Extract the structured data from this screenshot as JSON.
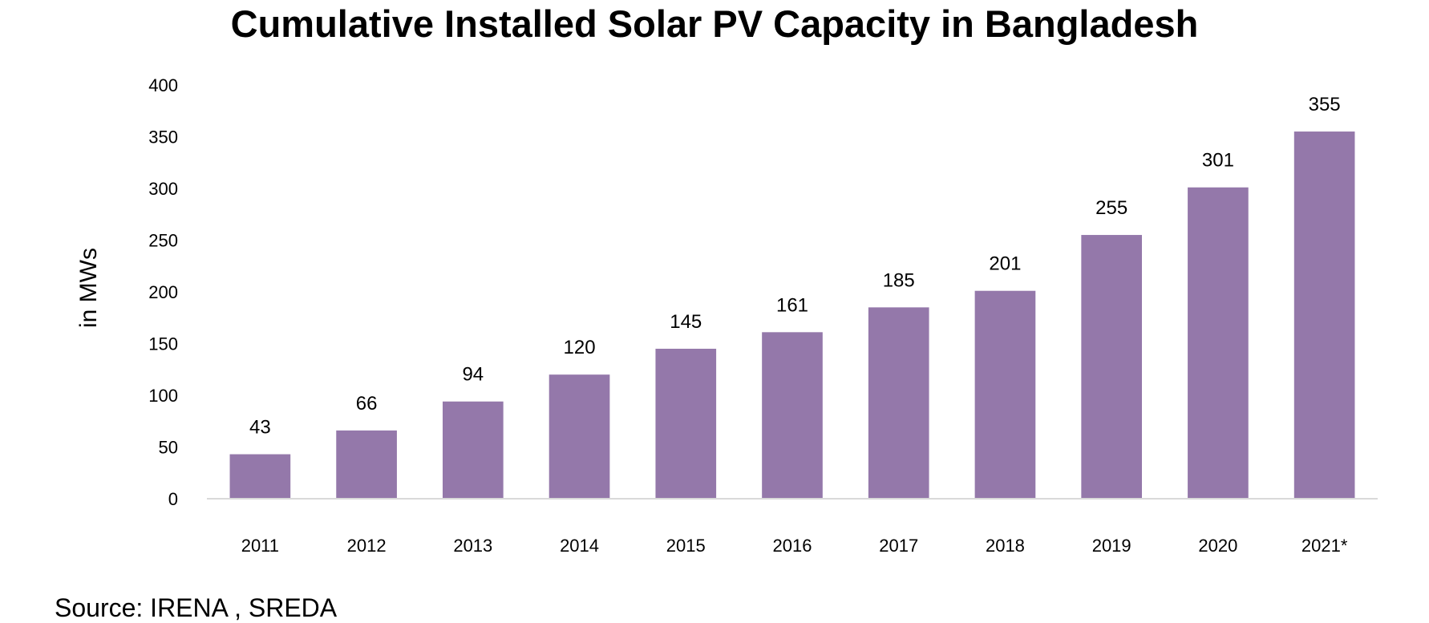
{
  "chart_data": {
    "type": "bar",
    "title": "Cumulative Installed Solar PV Capacity in Bangladesh",
    "ylabel": "in MWs",
    "xlabel": "",
    "categories": [
      "2011",
      "2012",
      "2013",
      "2014",
      "2015",
      "2016",
      "2017",
      "2018",
      "2019",
      "2020",
      "2021*"
    ],
    "values": [
      43,
      66,
      94,
      120,
      145,
      161,
      185,
      201,
      255,
      301,
      355
    ],
    "ylim": [
      0,
      400
    ],
    "yticks": [
      0,
      50,
      100,
      150,
      200,
      250,
      300,
      350,
      400
    ],
    "grid": false,
    "legend": "none",
    "bar_color": "#9478aa",
    "source": "Source: IRENA , SREDA"
  }
}
